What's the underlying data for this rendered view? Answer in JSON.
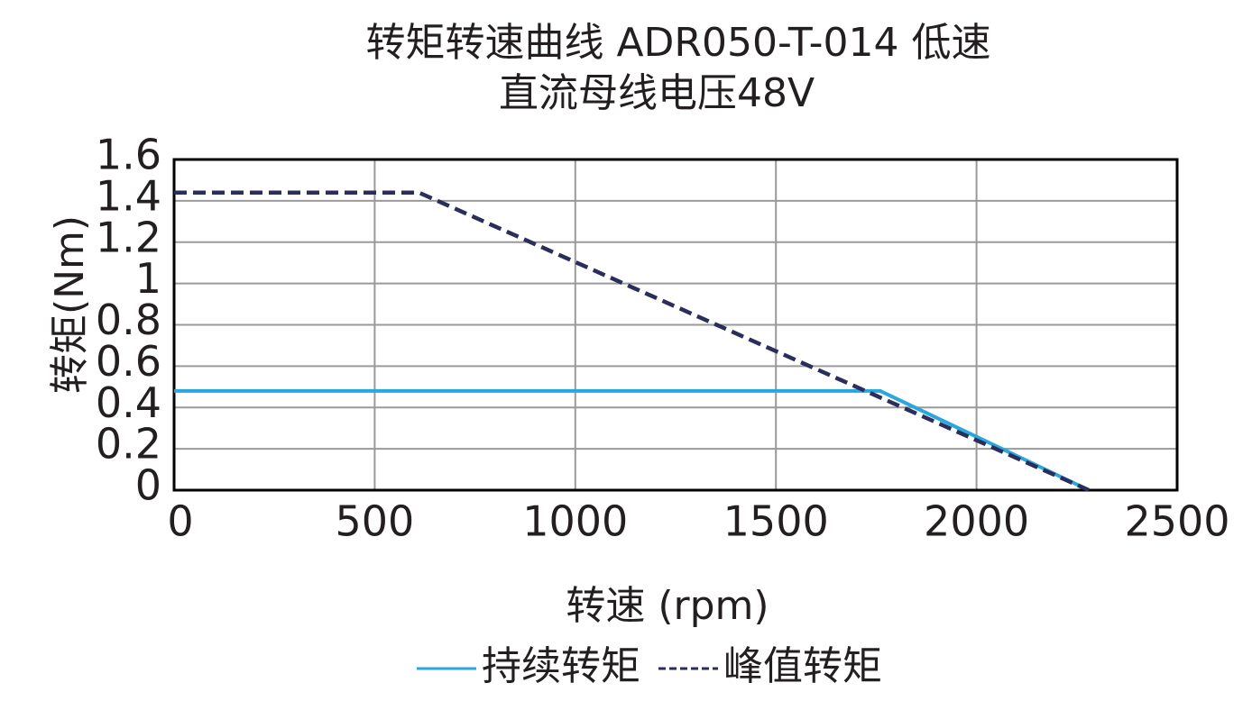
{
  "chart_data": {
    "type": "line",
    "title": "转矩转速曲线  ADR050-T-014 低速",
    "subtitle": "直流母线电压48V",
    "x_label": "转速 (rpm)",
    "y_label": "转矩(Nm)",
    "xlim": [
      0,
      2500
    ],
    "xticks": [
      0,
      500,
      1000,
      1500,
      2000,
      2500
    ],
    "ylim": [
      0,
      1.6
    ],
    "yticks": [
      0,
      0.2,
      0.4,
      0.6,
      0.8,
      1,
      1.2,
      1.4,
      1.6
    ],
    "grid": true,
    "legend": "bottom",
    "series": [
      {
        "name": "持续转矩",
        "color": "#2aa7dc",
        "dashed": false,
        "x": [
          0,
          1760,
          2280
        ],
        "values": [
          0.48,
          0.48,
          0
        ]
      },
      {
        "name": "峰值转矩",
        "color": "#2b2d5c",
        "dashed": true,
        "x": [
          0,
          610,
          2280
        ],
        "values": [
          1.44,
          1.44,
          0
        ]
      }
    ]
  }
}
